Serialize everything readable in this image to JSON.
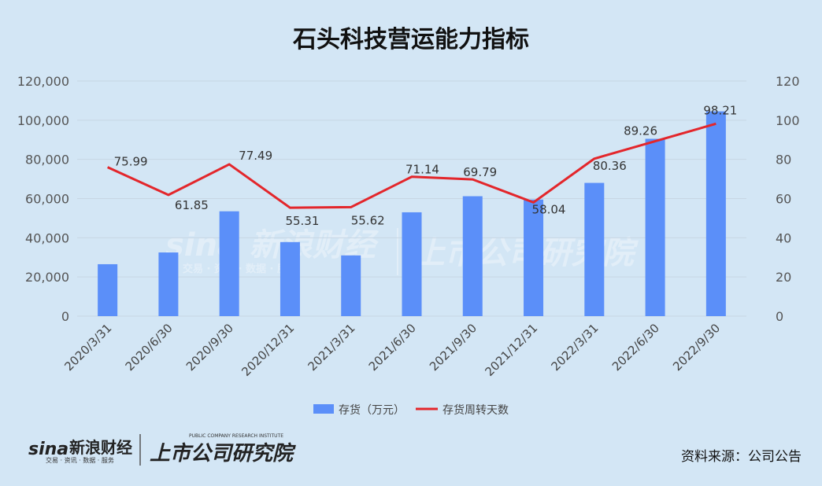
{
  "chart_data": {
    "type": "bar",
    "title": "石头科技营运能力指标",
    "categories": [
      "2020/3/31",
      "2020/6/30",
      "2020/9/30",
      "2020/12/31",
      "2021/3/31",
      "2021/6/30",
      "2021/9/30",
      "2021/12/31",
      "2022/3/31",
      "2022/6/30",
      "2022/9/30"
    ],
    "series": [
      {
        "name": "存货（万元）",
        "type": "bar",
        "axis": "left",
        "color": "#5b8ff9",
        "values": [
          26500,
          32500,
          53500,
          37800,
          31000,
          53000,
          61200,
          59500,
          68000,
          90500,
          104500
        ]
      },
      {
        "name": "存货周转天数",
        "type": "line",
        "axis": "right",
        "color": "#e3262b",
        "values": [
          75.99,
          61.85,
          77.49,
          55.31,
          55.62,
          71.14,
          69.79,
          58.04,
          80.36,
          89.26,
          98.21
        ],
        "labels": [
          "75.99",
          "61.85",
          "77.49",
          "55.31",
          "55.62",
          "71.14",
          "69.79",
          "58.04",
          "80.36",
          "89.26",
          "98.21"
        ]
      }
    ],
    "y_left": {
      "ylim": [
        0,
        120000
      ],
      "ticks": [
        "0",
        "20,000",
        "40,000",
        "60,000",
        "80,000",
        "100,000",
        "120,000"
      ]
    },
    "y_right": {
      "ylim": [
        0,
        120
      ],
      "ticks": [
        "0",
        "20",
        "40",
        "60",
        "80",
        "100",
        "120"
      ]
    },
    "grid": true,
    "legend": "bottom"
  },
  "source": "资料来源：公司公告",
  "logo": {
    "sina_wordmark": "sina",
    "sina_name": "新浪财经",
    "sina_tagline": "交易 · 资讯 · 数据 · 服务",
    "institute_name": "上市公司研究院",
    "institute_en": "PUBLIC COMPANY RESEARCH INSTITUTE"
  },
  "colors": {
    "background": "#d3e6f5",
    "bar": "#5b8ff9",
    "line": "#e3262b",
    "grid": "#c7d6e3"
  }
}
